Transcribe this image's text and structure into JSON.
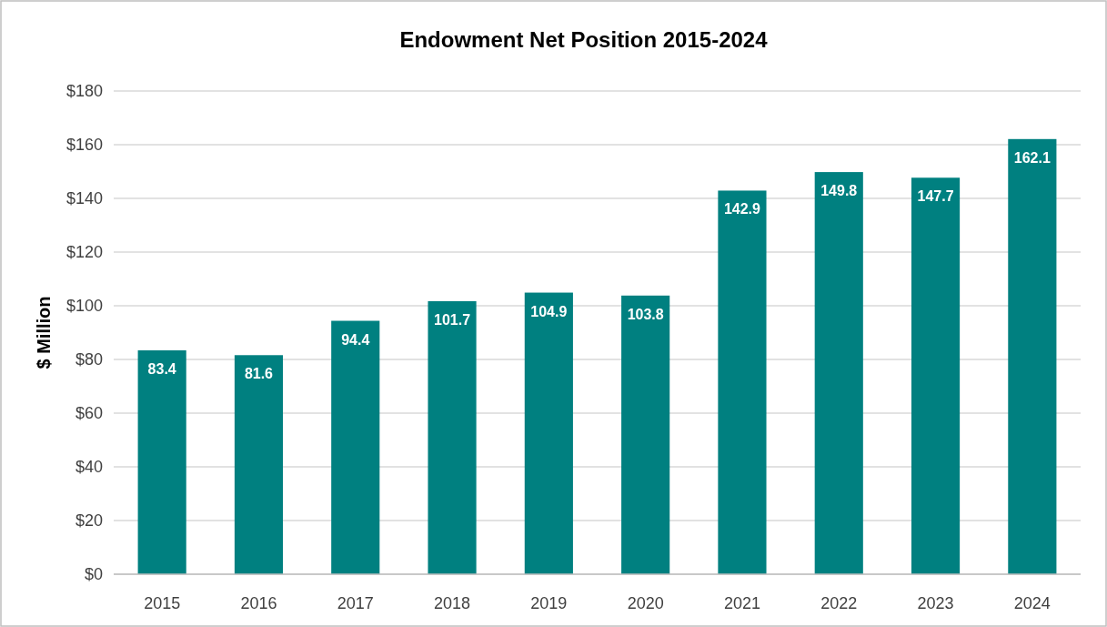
{
  "chart_data": {
    "type": "bar",
    "title": "Endowment Net Position 2015-2024",
    "ylabel": "$ Million",
    "categories": [
      "2015",
      "2016",
      "2017",
      "2018",
      "2019",
      "2020",
      "2021",
      "2022",
      "2023",
      "2024"
    ],
    "values": [
      83.4,
      81.6,
      94.4,
      101.7,
      104.9,
      103.8,
      142.9,
      149.8,
      147.7,
      162.1
    ],
    "color": "#008080",
    "data_labels": true,
    "grid": "y",
    "ylim": [
      0,
      180
    ],
    "yticks": [
      {
        "value": 0,
        "label": "$0"
      },
      {
        "value": 20,
        "label": "$20"
      },
      {
        "value": 40,
        "label": "$40"
      },
      {
        "value": 60,
        "label": "$60"
      },
      {
        "value": 80,
        "label": "$80"
      },
      {
        "value": 100,
        "label": "$100"
      },
      {
        "value": 120,
        "label": "$120"
      },
      {
        "value": 140,
        "label": "$140"
      },
      {
        "value": 160,
        "label": "$160"
      },
      {
        "value": 180,
        "label": "$180"
      }
    ]
  }
}
